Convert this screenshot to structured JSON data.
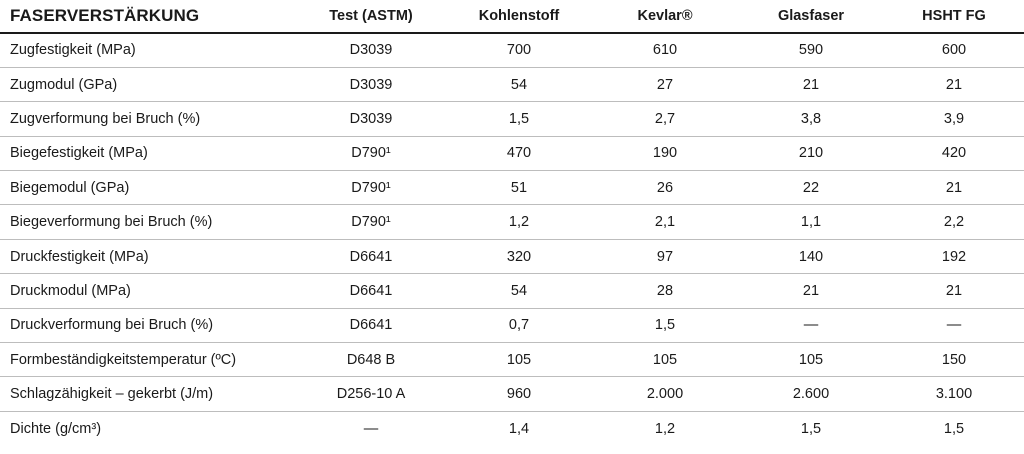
{
  "table": {
    "headers": {
      "property": "FASERVERSTÄRKUNG",
      "test": "Test (ASTM)",
      "carbon": "Kohlenstoff",
      "kevlar": "Kevlar®",
      "glass": "Glasfaser",
      "hsht": "HSHT FG"
    },
    "rows": [
      {
        "property": "Zugfestigkeit (MPa)",
        "test": "D3039",
        "carbon": "700",
        "kevlar": "610",
        "glass": "590",
        "hsht": "600"
      },
      {
        "property": "Zugmodul (GPa)",
        "test": "D3039",
        "carbon": "54",
        "kevlar": "27",
        "glass": "21",
        "hsht": "21"
      },
      {
        "property": "Zugverformung bei Bruch (%)",
        "test": "D3039",
        "carbon": "1,5",
        "kevlar": "2,7",
        "glass": "3,8",
        "hsht": "3,9"
      },
      {
        "property": "Biegefestigkeit (MPa)",
        "test": "D790¹",
        "carbon": "470",
        "kevlar": "190",
        "glass": "210",
        "hsht": "420"
      },
      {
        "property": "Biegemodul (GPa)",
        "test": "D790¹",
        "carbon": "51",
        "kevlar": "26",
        "glass": "22",
        "hsht": "21"
      },
      {
        "property": "Biegeverformung bei Bruch (%)",
        "test": "D790¹",
        "carbon": "1,2",
        "kevlar": "2,1",
        "glass": "1,1",
        "hsht": "2,2"
      },
      {
        "property": "Druckfestigkeit (MPa)",
        "test": "D6641",
        "carbon": "320",
        "kevlar": "97",
        "glass": "140",
        "hsht": "192"
      },
      {
        "property": "Druckmodul (MPa)",
        "test": "D6641",
        "carbon": "54",
        "kevlar": "28",
        "glass": "21",
        "hsht": "21"
      },
      {
        "property": "Druckverformung bei Bruch (%)",
        "test": "D6641",
        "carbon": "0,7",
        "kevlar": "1,5",
        "glass": "—",
        "hsht": "—"
      },
      {
        "property": "Formbeständigkeitstemperatur (ºC)",
        "test": "D648 B",
        "carbon": "105",
        "kevlar": "105",
        "glass": "105",
        "hsht": "150"
      },
      {
        "property": "Schlagzähigkeit – gekerbt (J/m)",
        "test": "D256-10 A",
        "carbon": "960",
        "kevlar": "2.000",
        "glass": "2.600",
        "hsht": "3.100"
      },
      {
        "property": "Dichte (g/cm³)",
        "test": "—",
        "carbon": "1,4",
        "kevlar": "1,2",
        "glass": "1,5",
        "hsht": "1,5"
      }
    ]
  }
}
